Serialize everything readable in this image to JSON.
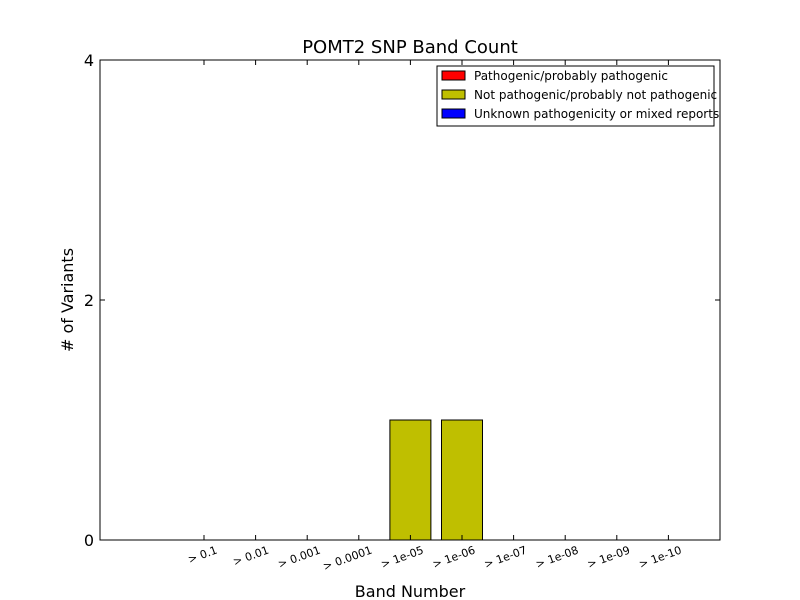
{
  "chart_data": {
    "type": "bar",
    "title": "POMT2 SNP Band Count",
    "xlabel": "Band Number",
    "ylabel": "# of Variants",
    "categories": [
      "> 0.1",
      "> 0.01",
      "> 0.001",
      "> 0.0001",
      "> 1e-05",
      "> 1e-06",
      "> 1e-07",
      "> 1e-08",
      "> 1e-09",
      "> 1e-10"
    ],
    "ylim": [
      0,
      4
    ],
    "yticks": [
      "0",
      "2",
      "4"
    ],
    "stacked": true,
    "grid": false,
    "legend_position": "top-right",
    "series": [
      {
        "name": "Pathogenic/probably pathogenic",
        "color": "#ff0000",
        "values": [
          0,
          0,
          0,
          0,
          0,
          0,
          0,
          0,
          0,
          0
        ]
      },
      {
        "name": "Not pathogenic/probably not pathogenic",
        "color": "#bfbf00",
        "values": [
          0,
          0,
          0,
          0,
          1,
          1,
          0,
          0,
          0,
          0
        ]
      },
      {
        "name": "Unknown pathogenicity or mixed reports",
        "color": "#0000ff",
        "values": [
          0,
          0,
          0,
          0,
          0,
          0,
          0,
          0,
          0,
          0
        ]
      }
    ]
  }
}
